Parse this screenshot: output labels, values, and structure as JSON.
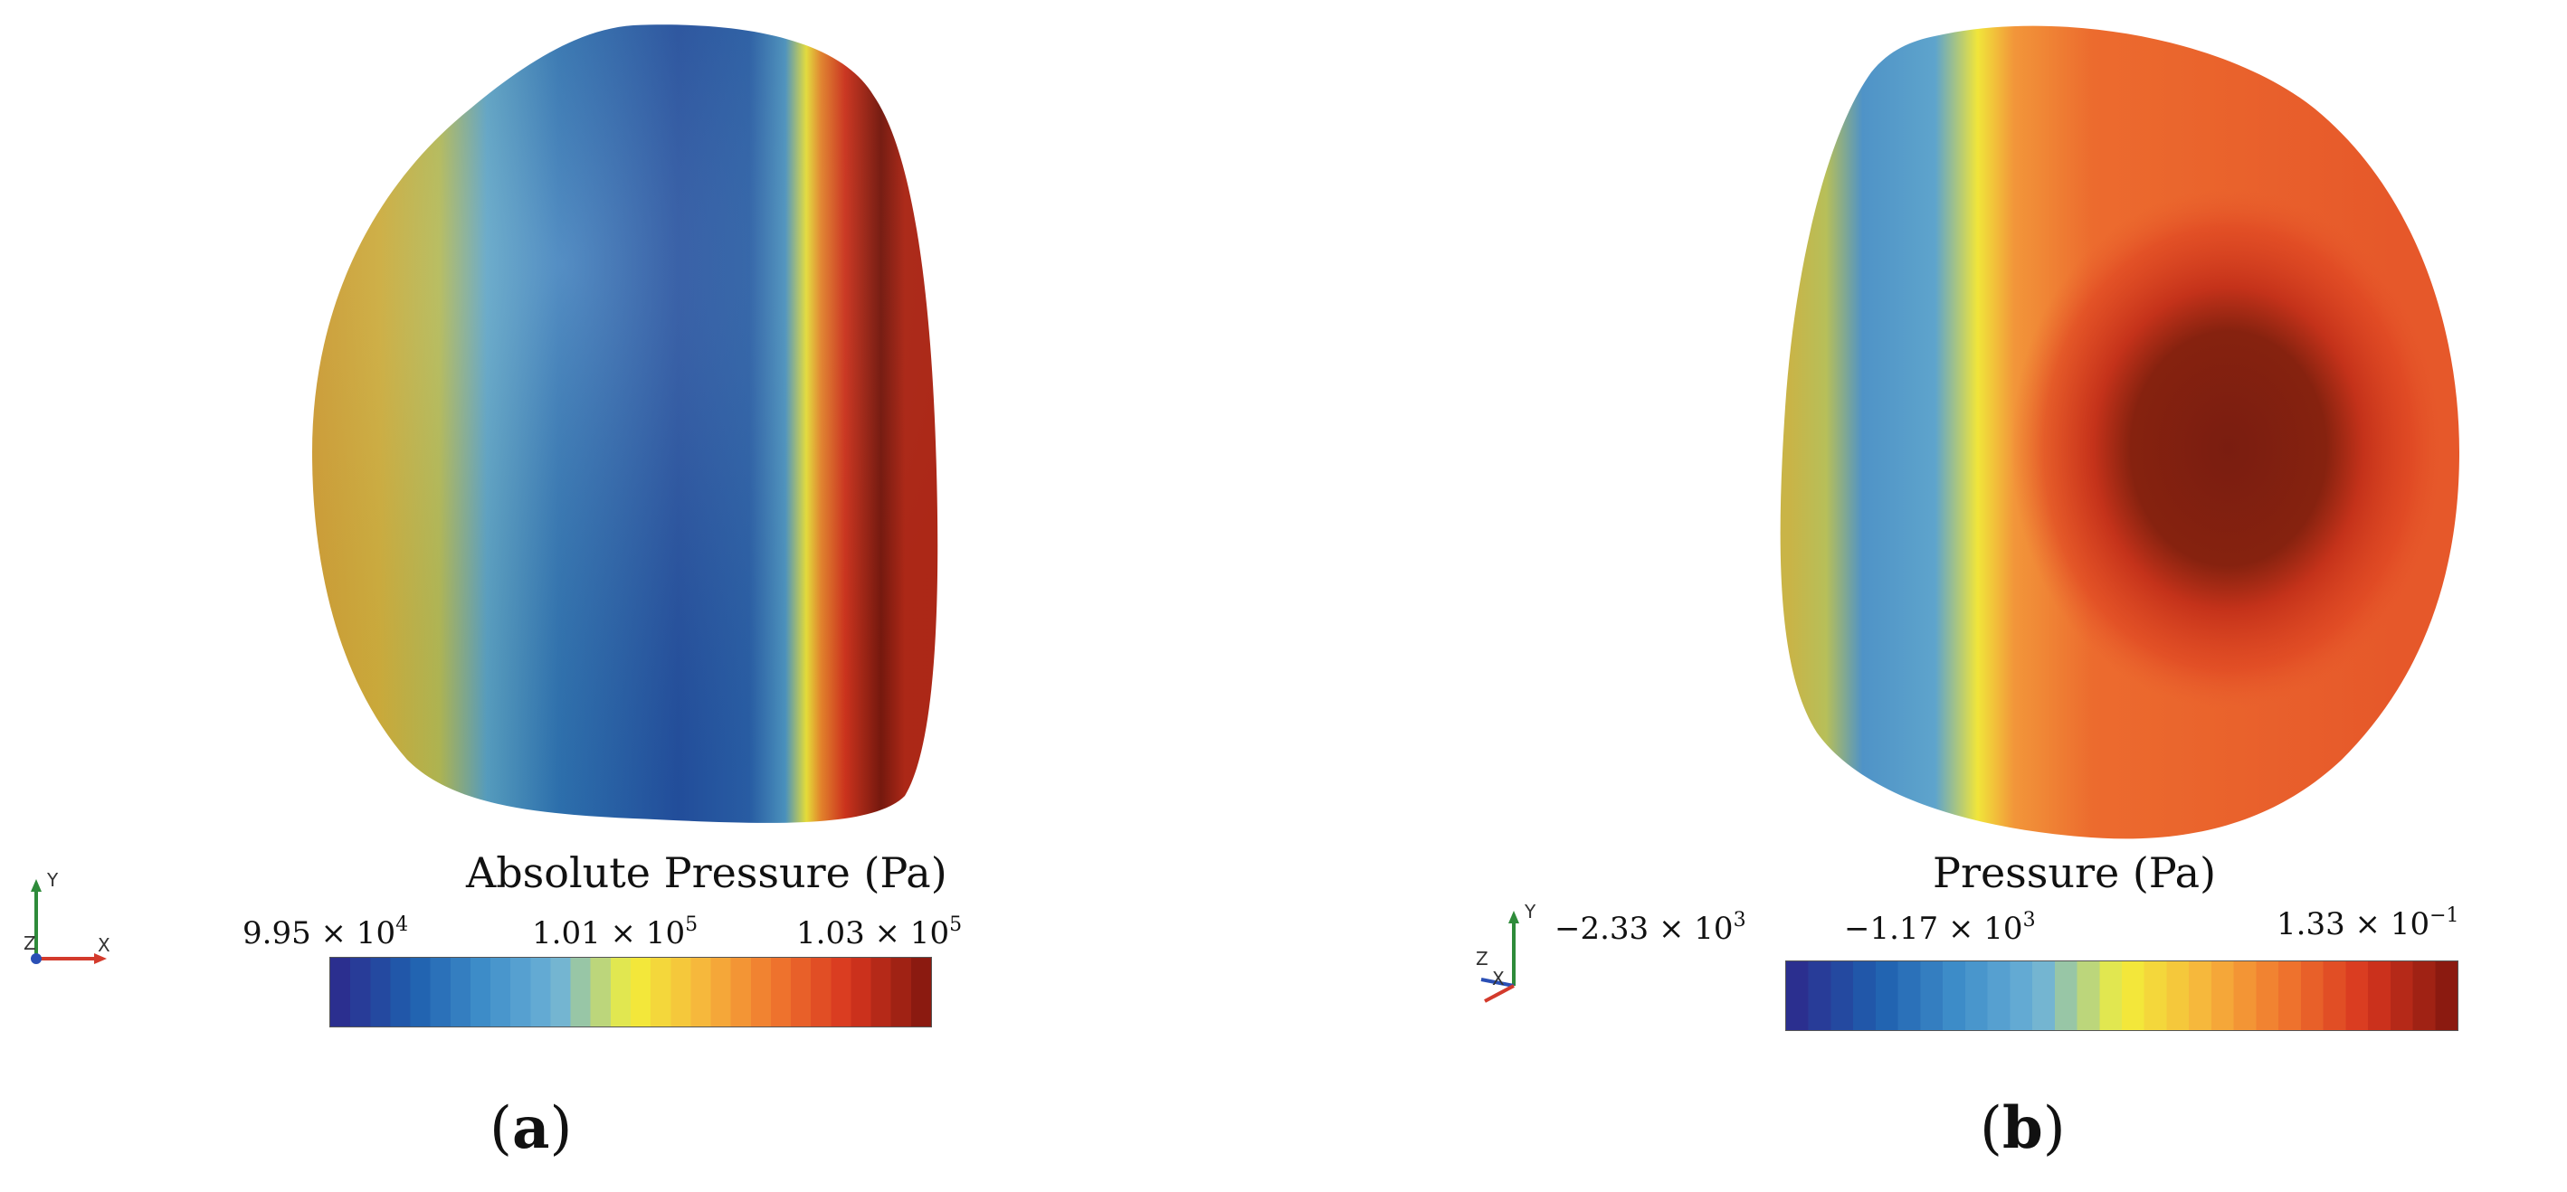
{
  "panels": [
    {
      "id": "a",
      "label_text": "a",
      "colorbar": {
        "title": "Absolute Pressure (Pa)",
        "ticks": [
          {
            "mantissa": "9.95 × 10",
            "exp": "4"
          },
          {
            "mantissa": "1.01 × 10",
            "exp": "5"
          },
          {
            "mantissa": "1.03 × 10",
            "exp": "5"
          }
        ]
      },
      "axes": {
        "y": "Y",
        "z": "Z",
        "x": "X"
      }
    },
    {
      "id": "b",
      "label_text": "b",
      "colorbar": {
        "title": "Pressure (Pa)",
        "ticks": [
          {
            "mantissa": "−2.33 × 10",
            "exp": "3"
          },
          {
            "mantissa": "−1.17 × 10",
            "exp": "3"
          },
          {
            "mantissa": "1.33 × 10",
            "exp": "−1"
          }
        ]
      },
      "axes": {
        "y": "Y",
        "z": "Z",
        "x": "X"
      }
    }
  ],
  "colormap": [
    "#2b2f8f",
    "#1f5fae",
    "#3f8fca",
    "#6fb3d6",
    "#f3ef3a",
    "#f6b63c",
    "#f0762e",
    "#d8361f",
    "#8b1a10"
  ]
}
